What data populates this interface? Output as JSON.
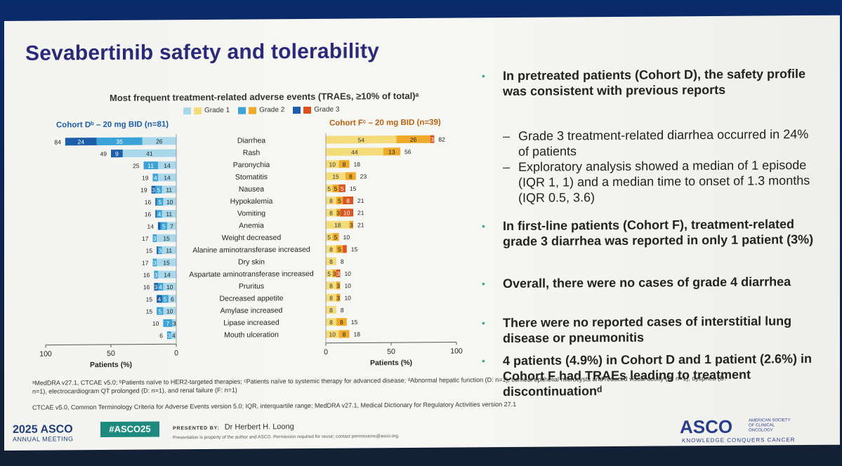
{
  "slide": {
    "title": "Sevabertinib safety and tolerability",
    "chart_heading": "Most frequent treatment-related adverse events (TRAEs, ≥10% of total)ᵃ",
    "legend": {
      "grade1": "Grade 1",
      "grade2": "Grade 2",
      "grade3": "Grade 3"
    },
    "cohort_d_label": "Cohort Dᵇ – 20 mg BID (n=81)",
    "cohort_f_label": "Cohort Fᶜ – 20 mg BID (n=39)"
  },
  "chart_data": {
    "type": "bar",
    "orientation": "horizontal-butterfly",
    "title": "Most frequent treatment-related adverse events (TRAEs, ≥10% of total)ᵃ",
    "xlabel": "Patients (%)",
    "xlim": [
      0,
      100
    ],
    "ticks": [
      "100",
      "50",
      "0"
    ],
    "ticks_f": [
      "0",
      "50",
      "100"
    ],
    "categories": [
      "Diarrhea",
      "Rash",
      "Paronychia",
      "Stomatitis",
      "Nausea",
      "Hypokalemia",
      "Vomiting",
      "Anemia",
      "Weight decreased",
      "Alanine aminotransferase increased",
      "Dry skin",
      "Aspartate aminotransferase increased",
      "Pruritus",
      "Decreased appetite",
      "Amylase increased",
      "Lipase increased",
      "Mouth ulceration"
    ],
    "cohort_d": {
      "name": "Cohort D – 20 mg BID (n=81)",
      "grade1": [
        26,
        41,
        14,
        14,
        11,
        10,
        11,
        7,
        15,
        11,
        15,
        14,
        10,
        6,
        10,
        3,
        4
      ],
      "grade2": [
        35,
        0,
        11,
        4,
        5,
        5,
        4,
        5,
        3,
        3,
        3,
        3,
        4,
        5,
        5,
        7,
        3
      ],
      "grade3": [
        24,
        9,
        0,
        0,
        3,
        1,
        1,
        2,
        0,
        1,
        0,
        0,
        3,
        4,
        0,
        0,
        0
      ],
      "totals": [
        84,
        49,
        25,
        19,
        19,
        16,
        16,
        14,
        17,
        15,
        17,
        16,
        16,
        15,
        15,
        10,
        6
      ],
      "labels": {
        "grade1": [
          "26",
          "41",
          "14",
          "14",
          "11",
          "10",
          "11",
          "7",
          "15",
          "11",
          "15",
          "14",
          "10",
          "6",
          "10",
          "3",
          "4"
        ],
        "grade2": [
          "35",
          "",
          "11",
          "4",
          "5",
          "5",
          "4",
          "5",
          "3",
          "3",
          "3",
          "3",
          "4",
          "5",
          "5",
          "7",
          "3"
        ],
        "grade3": [
          "24",
          "9",
          "",
          "",
          "3",
          "",
          "",
          "",
          "",
          "",
          "",
          "",
          "3",
          "4",
          "",
          "",
          ""
        ]
      }
    },
    "cohort_f": {
      "name": "Cohort F – 20 mg BID (n=39)",
      "grade1": [
        54,
        44,
        10,
        15,
        5,
        8,
        8,
        18,
        5,
        8,
        8,
        5,
        8,
        8,
        8,
        8,
        10
      ],
      "grade2": [
        26,
        13,
        8,
        8,
        5,
        5,
        3,
        3,
        5,
        5,
        0,
        3,
        3,
        3,
        0,
        8,
        8
      ],
      "grade3": [
        3,
        0,
        0,
        0,
        5,
        8,
        10,
        0,
        0,
        3,
        0,
        3,
        0,
        0,
        0,
        0,
        0
      ],
      "totals": [
        82,
        56,
        18,
        23,
        15,
        21,
        21,
        21,
        10,
        15,
        8,
        10,
        10,
        10,
        8,
        15,
        18
      ],
      "labels": {
        "grade1": [
          "54",
          "44",
          "10",
          "15",
          "5",
          "8",
          "8",
          "18",
          "5",
          "8",
          "8",
          "5",
          "8",
          "8",
          "8",
          "8",
          "10"
        ],
        "grade2": [
          "26",
          "13",
          "8",
          "8",
          "5",
          "5",
          "3",
          "3",
          "5",
          "5",
          "",
          "3",
          "3",
          "3",
          "",
          "8",
          "8"
        ],
        "grade3": [
          "3",
          "",
          "",
          "",
          "5",
          "8",
          "10",
          "",
          "",
          "",
          "",
          "3",
          "",
          "",
          "",
          "",
          ""
        ]
      }
    },
    "colors": {
      "d_grade1": "#a8d8ea",
      "d_grade2": "#3ba3d8",
      "d_grade3": "#1c5fa8",
      "f_grade1": "#f4dc7a",
      "f_grade2": "#eeaa28",
      "f_grade3": "#d9541e"
    }
  },
  "bullets": [
    {
      "level": 1,
      "text": "In pretreated patients (Cohort D), the safety profile was consistent with previous reports"
    },
    {
      "level": 2,
      "text": "Grade 3 treatment-related diarrhea occurred in 24% of patients"
    },
    {
      "level": 2,
      "text": "Exploratory analysis showed a median of 1 episode (IQR 1, 1) and a median time to onset of 1.3 months (IQR 0.5, 3.6)"
    },
    {
      "level": 1,
      "text": "In first-line patients (Cohort F), treatment-related grade 3 diarrhea was reported in only 1 patient (3%)"
    },
    {
      "level": 1,
      "text": "Overall, there were no cases of grade 4 diarrhea"
    },
    {
      "level": 1,
      "text": "There were no reported cases of interstitial lung disease or pneumonitis"
    },
    {
      "level": 1,
      "text": "4 patients (4.9%) in Cohort D and 1 patient (2.6%) in Cohort F had TRAEs leading to treatment discontinuationᵈ"
    }
  ],
  "footnotes": {
    "line1": "ᵃMedDRA v27.1, CTCAE v5.0; ᵇPatients naïve to HER2-targeted therapies; ᶜPatients naïve to systemic therapy for advanced disease; ᵈAbnormal hepatic function (D: n=1), corneal epithelial microcysts and reduced visual acuity (D: n=1), dyspnea (D: n=1), electrocardiogram QT prolonged (D: n=1), and renal failure (F: n=1)",
    "line2": "CTCAE v5.0, Common Terminology Criteria for Adverse Events version 5.0; IQR, interquartile range; MedDRA v27.1, Medical Dictionary for Regulatory Activities version 27.1"
  },
  "footer": {
    "asco_year": "2025 ASCO",
    "asco_meeting": "ANNUAL MEETING",
    "hashtag": "#ASCO25",
    "presented_by_label": "PRESENTED BY:",
    "presenter": "Dr Herbert H. Loong",
    "notice": "Presentation is property of the author and ASCO. Permission required for reuse; contact permissions@asco.org.",
    "asco_logo": "ASCO",
    "asco_society": "AMERICAN SOCIETY OF CLINICAL ONCOLOGY",
    "asco_tagline": "KNOWLEDGE CONQUERS CANCER"
  }
}
